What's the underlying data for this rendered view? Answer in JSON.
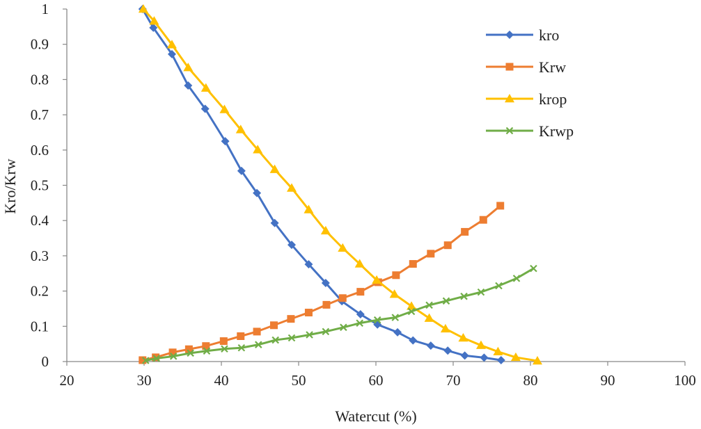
{
  "chart_data": {
    "type": "line",
    "title": "",
    "xlabel": "Watercut (%)",
    "ylabel": "Kro/Krw",
    "xlim": [
      20,
      100
    ],
    "ylim": [
      0,
      1
    ],
    "xticks": [
      20,
      30,
      40,
      50,
      60,
      70,
      80,
      90,
      100
    ],
    "yticks": [
      0,
      0.1,
      0.2,
      0.3,
      0.4,
      0.5,
      0.6,
      0.7,
      0.8,
      0.9,
      1
    ],
    "ytick_labels": [
      "0",
      "0.1",
      "0.2",
      "0.3",
      "0.4",
      "0.5",
      "0.6",
      "0.7",
      "0.8",
      "0.9",
      "1"
    ],
    "grid": false,
    "legend_position": "top-right",
    "series": [
      {
        "name": "kro",
        "color": "#4472C4",
        "marker": "diamond",
        "x": [
          29.8,
          31.2,
          33.6,
          35.7,
          37.9,
          40.5,
          42.6,
          44.6,
          46.9,
          49.1,
          51.3,
          53.5,
          55.6,
          58.0,
          60.2,
          62.8,
          64.8,
          67.1,
          69.3,
          71.5,
          74.0,
          76.2
        ],
        "y": [
          1.0,
          0.947,
          0.872,
          0.783,
          0.717,
          0.625,
          0.541,
          0.478,
          0.393,
          0.331,
          0.276,
          0.223,
          0.171,
          0.134,
          0.105,
          0.083,
          0.06,
          0.045,
          0.031,
          0.017,
          0.011,
          0.004
        ]
      },
      {
        "name": "Krw",
        "color": "#ED7D31",
        "marker": "square",
        "x": [
          29.8,
          31.5,
          33.7,
          35.8,
          38.0,
          40.3,
          42.5,
          44.6,
          46.8,
          49.0,
          51.3,
          53.6,
          55.7,
          58.0,
          60.3,
          62.6,
          64.8,
          67.1,
          69.3,
          71.5,
          73.9,
          76.1
        ],
        "y": [
          0.004,
          0.012,
          0.026,
          0.035,
          0.044,
          0.058,
          0.072,
          0.085,
          0.103,
          0.121,
          0.139,
          0.161,
          0.18,
          0.198,
          0.225,
          0.245,
          0.277,
          0.306,
          0.33,
          0.368,
          0.402,
          0.442
        ]
      },
      {
        "name": "krop",
        "color": "#FFC000",
        "marker": "triangle",
        "x": [
          29.9,
          31.3,
          33.6,
          35.7,
          38.0,
          40.4,
          42.5,
          44.7,
          46.9,
          49.1,
          51.3,
          53.5,
          55.7,
          57.9,
          60.1,
          62.4,
          64.6,
          66.9,
          69.0,
          71.3,
          73.6,
          75.8,
          78.1,
          80.9
        ],
        "y": [
          1.0,
          0.966,
          0.899,
          0.834,
          0.776,
          0.715,
          0.658,
          0.601,
          0.545,
          0.492,
          0.431,
          0.371,
          0.322,
          0.277,
          0.231,
          0.191,
          0.157,
          0.123,
          0.093,
          0.067,
          0.046,
          0.028,
          0.012,
          0.002
        ]
      },
      {
        "name": "Krwp",
        "color": "#70AD47",
        "marker": "x",
        "x": [
          30.2,
          31.6,
          33.8,
          36.0,
          38.1,
          40.4,
          42.6,
          44.8,
          47.0,
          49.1,
          51.4,
          53.5,
          55.8,
          57.9,
          60.2,
          62.5,
          64.6,
          66.9,
          69.1,
          71.4,
          73.6,
          75.9,
          78.2,
          80.4
        ],
        "y": [
          0.003,
          0.009,
          0.015,
          0.024,
          0.03,
          0.036,
          0.039,
          0.048,
          0.061,
          0.067,
          0.076,
          0.085,
          0.097,
          0.109,
          0.118,
          0.125,
          0.142,
          0.16,
          0.172,
          0.185,
          0.197,
          0.215,
          0.236,
          0.264
        ]
      }
    ]
  }
}
